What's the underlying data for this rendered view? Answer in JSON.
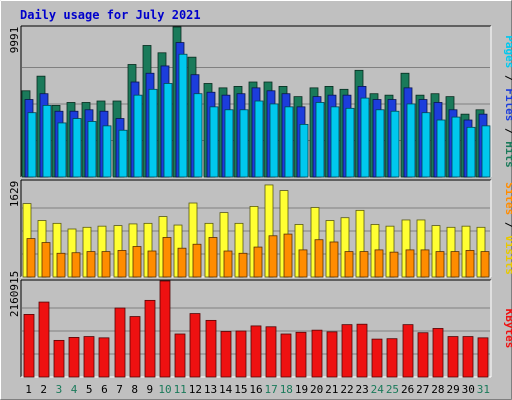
{
  "chart_data": {
    "type": "bar",
    "title": "Daily usage for July 2021",
    "categories": [
      "1",
      "2",
      "3",
      "4",
      "5",
      "6",
      "7",
      "8",
      "9",
      "10",
      "11",
      "12",
      "13",
      "14",
      "15",
      "16",
      "17",
      "18",
      "19",
      "20",
      "21",
      "22",
      "23",
      "24",
      "25",
      "26",
      "27",
      "28",
      "29",
      "30",
      "31"
    ],
    "weekend_days": [
      "3",
      "4",
      "10",
      "11",
      "17",
      "18",
      "24",
      "25",
      "31"
    ],
    "panels": [
      {
        "id": "hits",
        "max_label": "9991",
        "ymax": 9991,
        "series": [
          {
            "name": "Hits",
            "color": "#1a7a5a",
            "values": [
              5900,
              6900,
              4900,
              5100,
              5100,
              5200,
              5200,
              7700,
              9000,
              8500,
              10350,
              8200,
              6400,
              6100,
              6200,
              6500,
              6500,
              6200,
              5500,
              6100,
              6200,
              6000,
              7300,
              5700,
              5600,
              7100,
              5600,
              5700,
              5500,
              4300,
              4600
            ]
          },
          {
            "name": "Files",
            "color": "#1c3ddc",
            "values": [
              5300,
              5700,
              4500,
              4500,
              4600,
              4500,
              4000,
              6500,
              7100,
              7600,
              9200,
              7000,
              5800,
              5600,
              5700,
              6100,
              5900,
              5700,
              4800,
              5500,
              5600,
              5600,
              6200,
              5300,
              5300,
              6100,
              5300,
              5100,
              4600,
              3900,
              4300
            ]
          },
          {
            "name": "Pages",
            "color": "#00c8ee",
            "values": [
              4400,
              4900,
              3700,
              4000,
              3800,
              3500,
              3200,
              5600,
              6000,
              6400,
              8400,
              5700,
              4800,
              4600,
              4600,
              5200,
              5000,
              4800,
              3600,
              5100,
              4800,
              4700,
              5400,
              4600,
              4500,
              5000,
              4400,
              3900,
              4100,
              3400,
              3500
            ]
          }
        ]
      },
      {
        "id": "visits",
        "max_label": "1629",
        "ymax": 1629,
        "series": [
          {
            "name": "Visits",
            "color": "#ffff33",
            "values": [
              1300,
              1000,
              950,
              850,
              880,
              900,
              910,
              940,
              950,
              1070,
              920,
              1310,
              950,
              1140,
              950,
              1250,
              1630,
              1530,
              930,
              1230,
              1000,
              1050,
              1180,
              930,
              900,
              1010,
              1010,
              910,
              880,
              900,
              880
            ]
          },
          {
            "name": "Sites",
            "color": "#ff8c00",
            "values": [
              680,
              610,
              420,
              430,
              450,
              450,
              470,
              540,
              460,
              700,
              510,
              580,
              700,
              460,
              420,
              530,
              730,
              760,
              480,
              660,
              620,
              450,
              450,
              480,
              440,
              480,
              480,
              450,
              450,
              470,
              450
            ]
          }
        ]
      },
      {
        "id": "kbytes",
        "max_label": "2160915",
        "ymax": 2160915,
        "series": [
          {
            "name": "KBytes",
            "color": "#ee1111",
            "values": [
              1470000,
              1760000,
              860000,
              930000,
              950000,
              920000,
              1620000,
              1420000,
              1800000,
              2260000,
              1010000,
              1490000,
              1330000,
              1070000,
              1080000,
              1200000,
              1180000,
              1010000,
              1050000,
              1100000,
              1060000,
              1230000,
              1240000,
              890000,
              900000,
              1230000,
              1040000,
              1140000,
              950000,
              950000,
              920000
            ]
          }
        ]
      }
    ]
  },
  "legends": [
    {
      "panel": "hits",
      "parts": [
        {
          "text": "Pages",
          "color": "#00c8ee"
        },
        {
          "text": " / ",
          "color": "#000000"
        },
        {
          "text": "Files",
          "color": "#1c3ddc"
        },
        {
          "text": " / ",
          "color": "#000000"
        },
        {
          "text": "Hits",
          "color": "#1a7a5a"
        }
      ]
    },
    {
      "panel": "visits",
      "parts": [
        {
          "text": "Sites",
          "color": "#ff8c00"
        },
        {
          "text": " / ",
          "color": "#000000"
        },
        {
          "text": "Visits",
          "color": "#e8c800"
        }
      ]
    },
    {
      "panel": "kbytes",
      "parts": [
        {
          "text": "KBytes",
          "color": "#ee1111"
        }
      ]
    }
  ],
  "colors": {
    "background": "#c0c0c0",
    "plot_background": "#c0c0c0",
    "title": "#0000cc",
    "weekday_label": "#000000",
    "weekend_label": "#1a7a5a"
  }
}
